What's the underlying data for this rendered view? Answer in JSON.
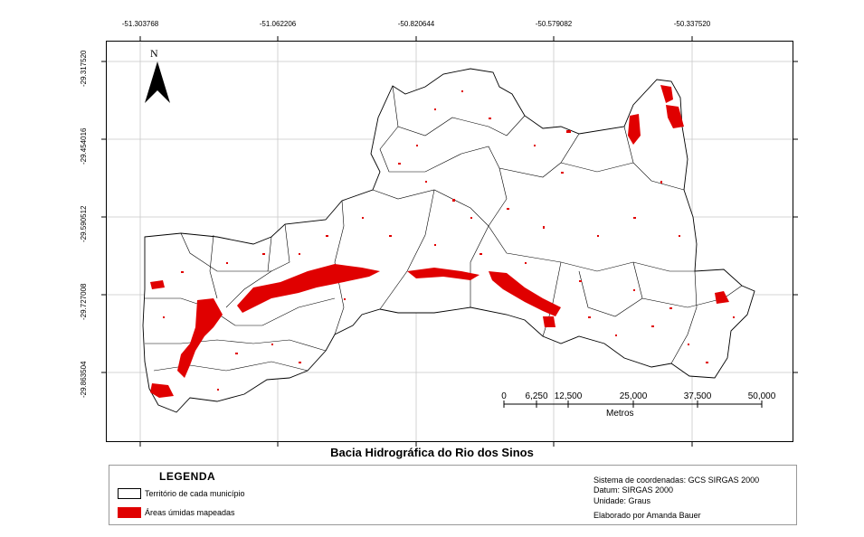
{
  "map": {
    "title": "Bacia Hidrográfica do Rio dos Sinos",
    "north_label": "N",
    "longitude_labels": [
      "-51.303768",
      "-51.062206",
      "-50.820644",
      "-50.579082",
      "-50.337520"
    ],
    "latitude_labels": [
      "-29.317520",
      "-29.454016",
      "-29.590512",
      "-29.727008",
      "-29.863504"
    ],
    "scale": {
      "ticks": [
        "0",
        "6,250",
        "12,500",
        "25,000",
        "37,500",
        "50,000"
      ],
      "unit": "Metros"
    },
    "colors": {
      "wetland": "#e00000",
      "municipality_fill": "#ffffff",
      "boundary": "#000000",
      "graticule": "#c8c8c8"
    }
  },
  "legend": {
    "title": "LEGENDA",
    "items": [
      {
        "label": "Território de cada município",
        "color": "#ffffff"
      },
      {
        "label": "Áreas úmidas mapeadas",
        "color": "#e00000"
      }
    ]
  },
  "metadata": {
    "coordinate_system": "Sistema de coordenadas: GCS SIRGAS 2000",
    "datum": "Datum: SIRGAS 2000",
    "unit": "Unidade: Graus",
    "author": "Elaborado por Amanda Bauer"
  }
}
